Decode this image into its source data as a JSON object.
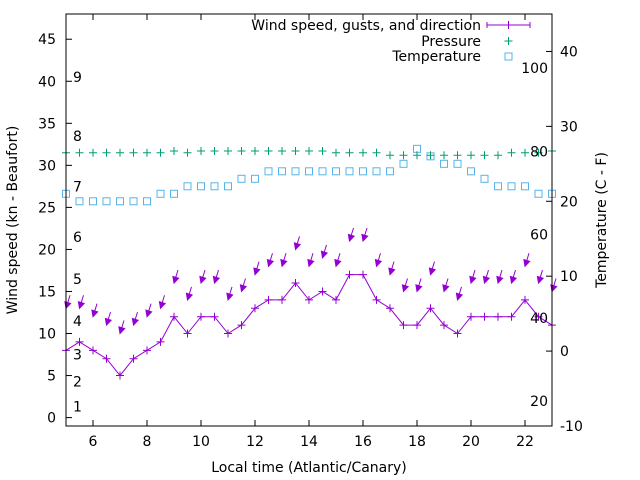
{
  "chart_data": {
    "type": "line",
    "xlabel": "Local time (Atlantic/Canary)",
    "ylabel": "Wind speed (kn - Beaufort)",
    "y2label": "Temperature (C - F)",
    "xlim": [
      5,
      23
    ],
    "ylim": [
      -1,
      48
    ],
    "y2lim": [
      -10,
      45
    ],
    "xticks": [
      "6",
      "8",
      "10",
      "12",
      "14",
      "16",
      "18",
      "20",
      "22"
    ],
    "yticks": [
      "0",
      "5",
      "10",
      "15",
      "20",
      "25",
      "30",
      "35",
      "40",
      "45"
    ],
    "y2ticks": [
      "-10",
      "0",
      "10",
      "20",
      "30",
      "40"
    ],
    "beaufort_labels": [
      "1",
      "2",
      "3",
      "4",
      "5",
      "6",
      "7",
      "8",
      "9"
    ],
    "beaufort_knots": [
      1.3,
      4.3,
      7.5,
      11.5,
      16.5,
      21.5,
      27.5,
      33.5,
      40.5
    ],
    "fahrenheit_labels": [
      "20",
      "40",
      "60",
      "80",
      "100"
    ],
    "fahrenheit_values": [
      20,
      40,
      60,
      80,
      100
    ],
    "grid": false,
    "legend_position": "top-right",
    "x": [
      5,
      5.5,
      6,
      6.5,
      7,
      7.5,
      8,
      8.5,
      9,
      9.5,
      10,
      10.5,
      11,
      11.5,
      12,
      12.5,
      13,
      13.5,
      14,
      14.5,
      15,
      15.5,
      16,
      16.5,
      17,
      17.5,
      18,
      18.5,
      19,
      19.5,
      20,
      20.5,
      21,
      21.5,
      22,
      22.5,
      23
    ],
    "series": [
      {
        "name": "Wind speed, gusts, and direction",
        "color": "#9400d3",
        "style": "line+plus",
        "values": [
          8,
          9,
          8,
          7,
          5,
          7,
          8,
          9,
          12,
          10,
          12,
          12,
          10,
          11,
          13,
          14,
          14,
          16,
          14,
          15,
          14,
          17,
          17,
          14,
          13,
          11,
          11,
          13,
          11,
          10,
          12,
          12,
          12,
          12,
          14,
          12,
          11
        ],
        "gusts": [
          13,
          13,
          12,
          11,
          10,
          11,
          12,
          13,
          16,
          14,
          16,
          16,
          14,
          15,
          17,
          18,
          18,
          20,
          18,
          19,
          18,
          21,
          21,
          18,
          17,
          15,
          15,
          17,
          15,
          14,
          16,
          16,
          16,
          16,
          18,
          16,
          15
        ],
        "direction_arrows": true
      },
      {
        "name": "Pressure",
        "color": "#009e73",
        "style": "plus",
        "axis": "y",
        "values": [
          31.5,
          31.5,
          31.5,
          31.5,
          31.5,
          31.5,
          31.5,
          31.5,
          31.7,
          31.5,
          31.7,
          31.7,
          31.7,
          31.7,
          31.7,
          31.7,
          31.7,
          31.7,
          31.7,
          31.7,
          31.5,
          31.5,
          31.5,
          31.5,
          31.2,
          31.2,
          31.2,
          31.2,
          31.2,
          31.2,
          31.2,
          31.2,
          31.2,
          31.5,
          31.5,
          31.5,
          31.7
        ]
      },
      {
        "name": "Temperature",
        "color": "#56b4e9",
        "style": "square",
        "axis": "y2",
        "values": [
          21,
          20,
          20,
          20,
          20,
          20,
          20,
          21,
          21,
          22,
          22,
          22,
          22,
          23,
          23,
          24,
          24,
          24,
          24,
          24,
          24,
          24,
          24,
          24,
          24,
          25,
          27,
          26,
          25,
          25,
          24,
          23,
          22,
          22,
          22,
          21,
          21
        ]
      }
    ]
  }
}
